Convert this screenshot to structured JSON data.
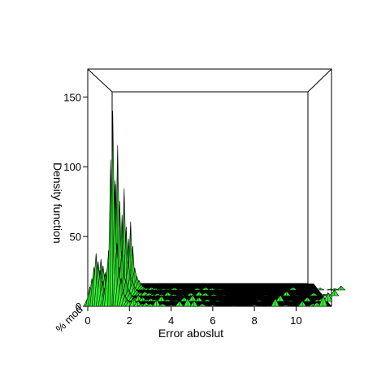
{
  "chart_data": {
    "type": "area",
    "title": "",
    "xlabel": "Error aboslut",
    "ylabel": "Density function",
    "zlabel": "% mod",
    "xlim": [
      0,
      11.7
    ],
    "zlim": [
      0,
      170
    ],
    "x_ticks": [
      "0",
      "2",
      "4",
      "6",
      "8",
      "10"
    ],
    "z_ticks": [
      "0",
      "50",
      "100",
      "150"
    ],
    "grid": false,
    "surface_color": "#33ee33",
    "floor_color": "#000000",
    "series": [
      {
        "values": [
          [
            0.0,
            6
          ],
          [
            0.1,
            14
          ],
          [
            0.2,
            20
          ],
          [
            0.3,
            28
          ],
          [
            0.4,
            38
          ],
          [
            0.5,
            32
          ],
          [
            0.6,
            26
          ],
          [
            0.7,
            18
          ],
          [
            0.8,
            13
          ],
          [
            0.9,
            22
          ],
          [
            1.0,
            40
          ],
          [
            1.1,
            105
          ],
          [
            1.2,
            140
          ],
          [
            1.3,
            90
          ],
          [
            1.4,
            45
          ],
          [
            1.5,
            28
          ],
          [
            1.6,
            20
          ],
          [
            1.7,
            12
          ],
          [
            1.8,
            8
          ],
          [
            1.9,
            5
          ],
          [
            2.0,
            4
          ],
          [
            2.2,
            6
          ],
          [
            2.4,
            4
          ],
          [
            2.6,
            2
          ],
          [
            2.8,
            3
          ],
          [
            3.0,
            2
          ],
          [
            3.3,
            5
          ],
          [
            3.6,
            2
          ],
          [
            4.0,
            1
          ],
          [
            4.4,
            4
          ],
          [
            4.8,
            6
          ],
          [
            5.1,
            4
          ],
          [
            5.5,
            2
          ],
          [
            6.0,
            1
          ],
          [
            7.0,
            0.5
          ],
          [
            8.0,
            1
          ],
          [
            9.0,
            6
          ],
          [
            9.5,
            1
          ],
          [
            10.3,
            4
          ],
          [
            10.8,
            2
          ],
          [
            11.0,
            3
          ],
          [
            11.3,
            8
          ],
          [
            11.7,
            0
          ]
        ]
      }
    ]
  }
}
